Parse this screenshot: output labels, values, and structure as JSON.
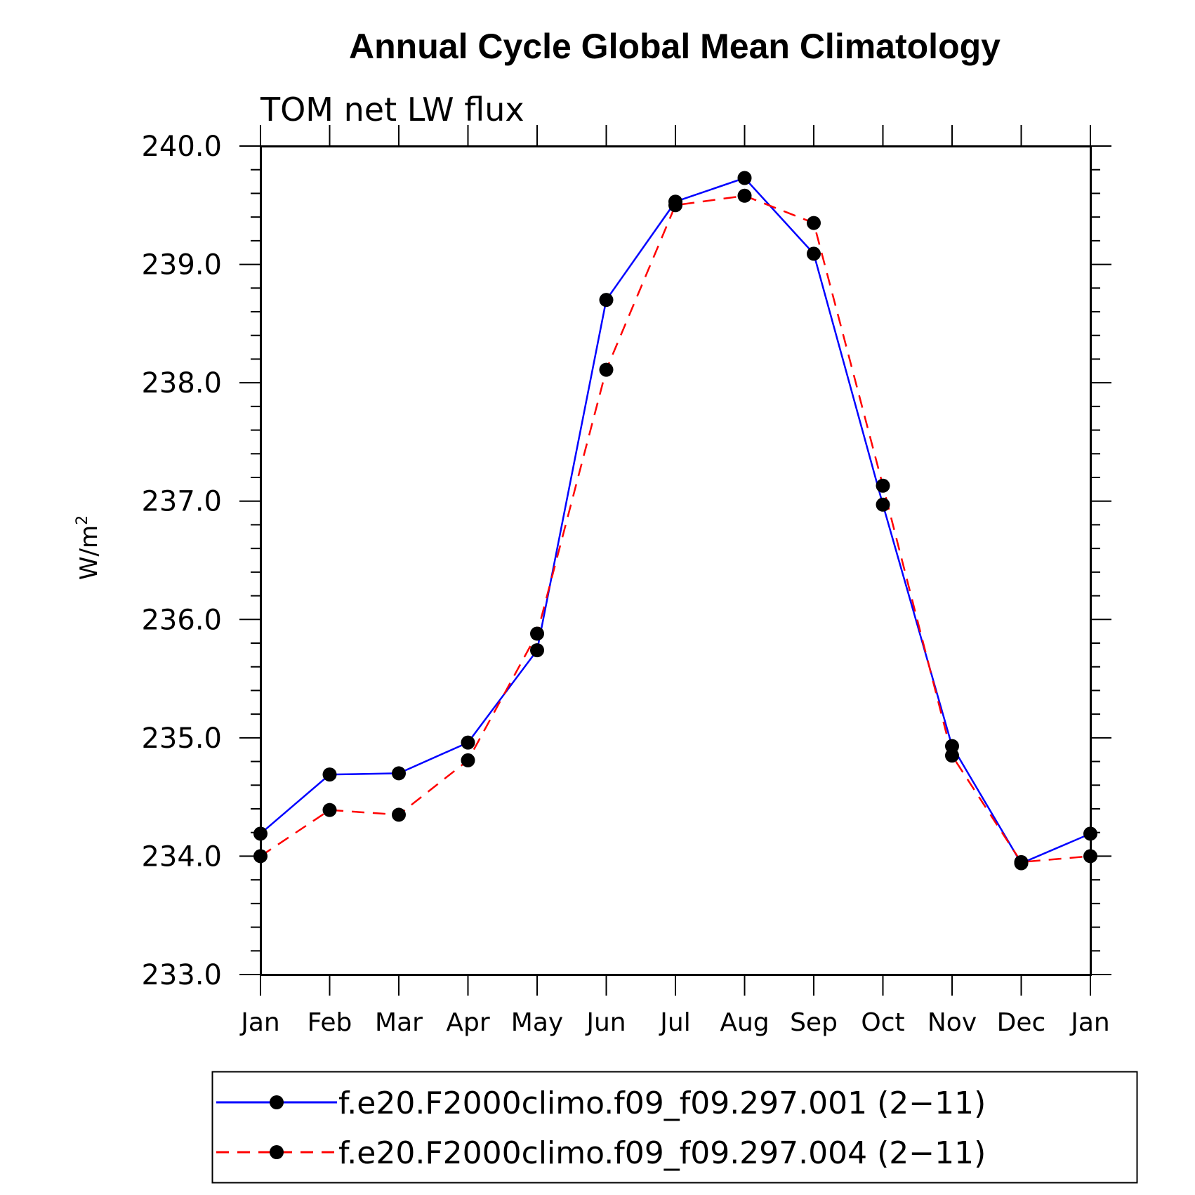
{
  "chart_data": {
    "type": "line",
    "title": "Annual Cycle Global Mean Climatology",
    "subtitle": "TOM net LW flux",
    "ylabel": "W/m",
    "ylabel_superscript": "2",
    "ylim": [
      233.0,
      240.0
    ],
    "yticks": [
      "233.0",
      "234.0",
      "235.0",
      "236.0",
      "237.0",
      "238.0",
      "239.0",
      "240.0"
    ],
    "categories": [
      "Jan",
      "Feb",
      "Mar",
      "Apr",
      "May",
      "Jun",
      "Jul",
      "Aug",
      "Sep",
      "Oct",
      "Nov",
      "Dec",
      "Jan"
    ],
    "grid": false,
    "legend_position": "bottom",
    "series": [
      {
        "name": "f.e20.F2000climo.f09_f09.297.001 (2−11)",
        "color": "#0000ff",
        "style": "solid",
        "marker": "filled-circle",
        "values": [
          234.19,
          234.69,
          234.7,
          234.96,
          235.74,
          238.7,
          239.53,
          239.73,
          239.09,
          236.97,
          234.93,
          233.94,
          234.19
        ]
      },
      {
        "name": "f.e20.F2000climo.f09_f09.297.004 (2−11)",
        "color": "#ff0000",
        "style": "dashed",
        "marker": "filled-circle",
        "values": [
          234.0,
          234.39,
          234.35,
          234.81,
          235.88,
          238.11,
          239.5,
          239.58,
          239.35,
          237.13,
          234.85,
          233.95,
          234.0
        ]
      }
    ]
  }
}
